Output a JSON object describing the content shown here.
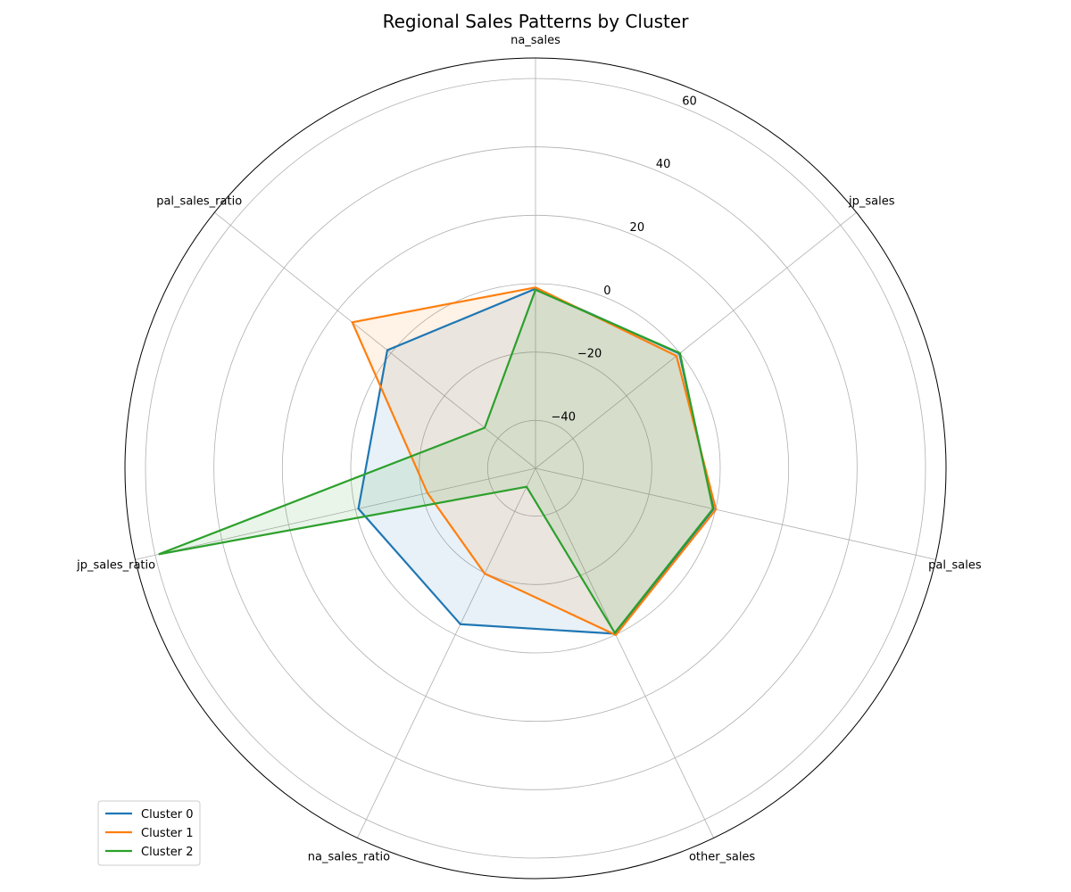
{
  "chart_data": {
    "type": "radar",
    "title": "Regional Sales Patterns by Cluster",
    "axes": [
      "na_sales",
      "jp_sales",
      "pal_sales",
      "other_sales",
      "na_sales_ratio",
      "jp_sales_ratio",
      "pal_sales_ratio"
    ],
    "r_ticks": [
      "−40",
      "−20",
      "0",
      "20",
      "40",
      "60"
    ],
    "r_tick_values": [
      -40,
      -20,
      0,
      20,
      40,
      60
    ],
    "rlim": [
      -54,
      66
    ],
    "grid": true,
    "legend_position": "lower-left",
    "series": [
      {
        "name": "Cluster 0",
        "color": "#1f77b4",
        "values": [
          -1.5,
          -0.2,
          -0.6,
          -0.3,
          -3.4,
          -0.9,
          1.4
        ]
      },
      {
        "name": "Cluster 1",
        "color": "#ff7f0e",
        "values": [
          -1.1,
          -1.3,
          0.1,
          0.1,
          -19.8,
          -21.6,
          14.5
        ]
      },
      {
        "name": "Cluster 2",
        "color": "#2ca02c",
        "values": [
          -1.8,
          0.0,
          -0.8,
          -0.6,
          -48.0,
          59.0,
          -35.0
        ]
      }
    ]
  }
}
